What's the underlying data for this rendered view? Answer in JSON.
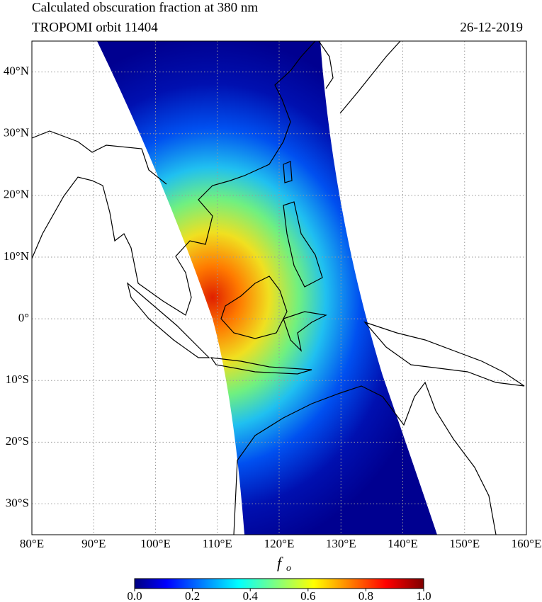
{
  "chart_data": {
    "type": "map",
    "title": "Calculated obscuration fraction at 380 nm",
    "subtitle": "TROPOMI orbit 11404",
    "date": "26-12-2019",
    "xlim": [
      80,
      160
    ],
    "ylim": [
      -35,
      45
    ],
    "xticks": [
      {
        "value": 80,
        "label": "80°E"
      },
      {
        "value": 90,
        "label": "90°E"
      },
      {
        "value": 100,
        "label": "100°E"
      },
      {
        "value": 110,
        "label": "110°E"
      },
      {
        "value": 120,
        "label": "120°E"
      },
      {
        "value": 130,
        "label": "130°E"
      },
      {
        "value": 140,
        "label": "140°E"
      },
      {
        "value": 150,
        "label": "150°E"
      },
      {
        "value": 160,
        "label": "160°E"
      }
    ],
    "yticks": [
      {
        "value": -30,
        "label": "30°S"
      },
      {
        "value": -20,
        "label": "20°S"
      },
      {
        "value": -10,
        "label": "10°S"
      },
      {
        "value": 0,
        "label": "0°"
      },
      {
        "value": 10,
        "label": "10°N"
      },
      {
        "value": 20,
        "label": "20°N"
      },
      {
        "value": 30,
        "label": "30°N"
      },
      {
        "value": 40,
        "label": "40°N"
      }
    ],
    "grid": true,
    "colorbar_label": "f",
    "colorbar_label_subscript": "o",
    "clim": [
      0,
      1
    ],
    "colorbar_ticks": [
      {
        "value": 0,
        "label": "0.0"
      },
      {
        "value": 0.2,
        "label": "0.2"
      },
      {
        "value": 0.4,
        "label": "0.4"
      },
      {
        "value": 0.6,
        "label": "0.6"
      },
      {
        "value": 0.8,
        "label": "0.8"
      },
      {
        "value": 1,
        "label": "1.0"
      }
    ]
  }
}
